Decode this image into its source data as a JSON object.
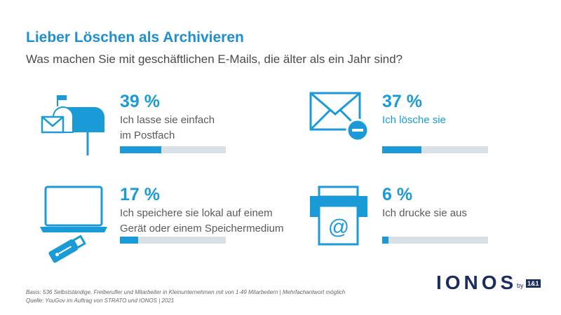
{
  "title": "Lieber Löschen als Archivieren",
  "subtitle": "Was machen Sie mit geschäftlichen E-Mails, die älter als ein Jahr sind?",
  "chart_data": {
    "type": "bar",
    "categories": [
      "Ich lasse sie einfach im Postfach",
      "Ich lösche sie",
      "Ich speichere sie lokal auf einem Gerät oder einem Speichermedium",
      "Ich drucke sie aus"
    ],
    "values": [
      39,
      37,
      17,
      6
    ],
    "ylim": [
      0,
      100
    ]
  },
  "items": [
    {
      "pct": "39 %",
      "line1": "Ich lasse sie einfach",
      "line2": "im Postfach",
      "value": 39,
      "icon": "mailbox-icon"
    },
    {
      "pct": "37 %",
      "line1": "Ich lösche sie",
      "line2": "",
      "value": 37,
      "icon": "envelope-minus-icon"
    },
    {
      "pct": "17 %",
      "line1": "Ich speichere sie lokal auf einem",
      "line2": "Gerät oder einem Speichermedium",
      "value": 17,
      "icon": "laptop-usb-icon"
    },
    {
      "pct": "6 %",
      "line1": "Ich drucke sie aus",
      "line2": "",
      "value": 6,
      "icon": "printer-at-icon"
    }
  ],
  "footer": {
    "basis": "Basis: 536 Selbstständige, Freiberufler und Mitarbeiter in Kleinunternehmen mit von 1-49 Mitarbeitern | Mehrfachantwort möglich",
    "source": "Quelle: YouGov im Auftrag von STRATO und IONOS | 2021"
  },
  "logo": {
    "name": "IONOS",
    "by": "by",
    "brand": "1&1"
  },
  "colors": {
    "accent": "#1a9ad6",
    "track": "#d9e0e6",
    "logo": "#1b2c5e"
  }
}
